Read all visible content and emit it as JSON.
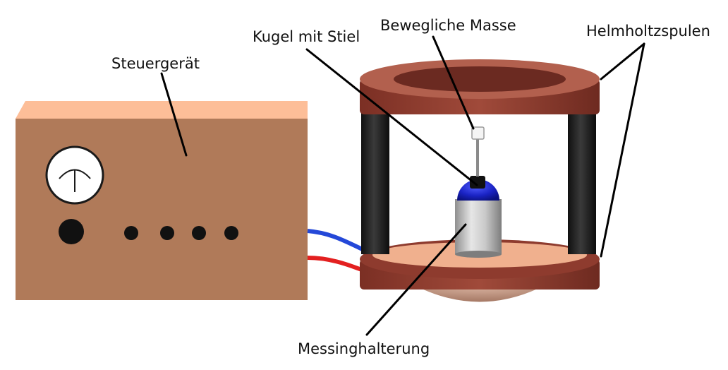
{
  "labels": {
    "controller": "Steuergerät",
    "ball_with_stem": "Kugel mit Stiel",
    "movable_mass": "Bewegliche Masse",
    "helmholtz_coils": "Helmholtzspulen",
    "brass_holder": "Messinghalterung"
  },
  "colors": {
    "box_front": "#b07a59",
    "box_top": "#fdbe98",
    "coil_copper": "#8e3b2e",
    "coil_inner": "#6b2a21",
    "coil_top_face": "#b2604e",
    "pillar": "#1f1f1f",
    "cable_blue": "#2448d8",
    "cable_red": "#e32020",
    "ball_blue": "#1a23c4",
    "brass_cylinder": "#b9b9b9",
    "base_plate": "#f0b08e",
    "leader_line": "#000000"
  },
  "icons": [
    "gauge-icon",
    "knob-icon",
    "indicator-dot-icon"
  ]
}
